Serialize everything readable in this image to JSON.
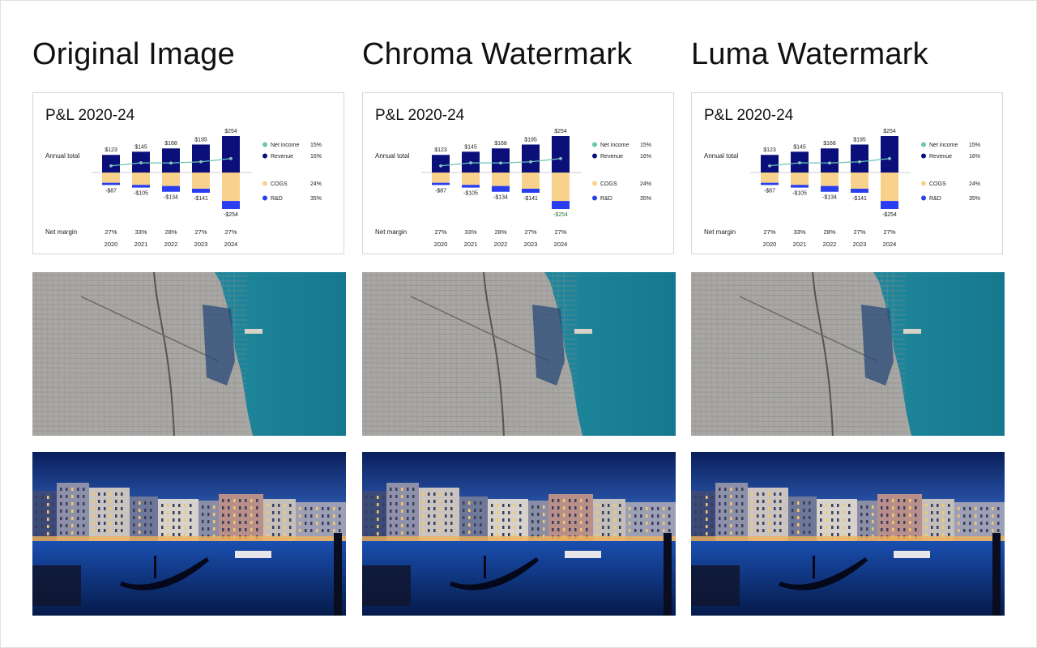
{
  "columns": [
    {
      "title": "Original Image",
      "variant": "original"
    },
    {
      "title": "Chroma Watermark",
      "variant": "chroma"
    },
    {
      "title": "Luma Watermark",
      "variant": "luma"
    }
  ],
  "colors": {
    "revenue": "#0b0f7a",
    "cogs": "#f8d28c",
    "rnd": "#2a3df0",
    "net_income": "#6cc4b4",
    "text": "#222222",
    "muted": "#444444",
    "card_border": "#d6d6d6",
    "city_land": "#a9a7a3",
    "city_water": "#1d8fa3",
    "venice_sky": "#0e2a6e",
    "venice_water": "#0d3a8a"
  },
  "chart_data": {
    "type": "bar",
    "title": "P&L 2020-24",
    "categories": [
      "2020",
      "2021",
      "2022",
      "2023",
      "2024"
    ],
    "row_labels": {
      "annual_total": "Annual total",
      "net_margin": "Net margin"
    },
    "series": [
      {
        "name": "Revenue",
        "values": [
          123,
          145,
          168,
          195,
          254
        ]
      },
      {
        "name": "COGS",
        "values": [
          -87,
          -105,
          -134,
          -141,
          -254
        ]
      },
      {
        "name": "R&D",
        "values": [
          -87,
          -105,
          -134,
          -141,
          -254
        ]
      },
      {
        "name": "Net income",
        "values": [
          33,
          48,
          47,
          53,
          69
        ]
      }
    ],
    "revenue_labels": [
      "$123",
      "$145",
      "$168",
      "$195",
      "$254"
    ],
    "cost_labels": [
      "-$87",
      "-$105",
      "-$134",
      "-$141",
      "-$254"
    ],
    "net_margin_labels": [
      "27%",
      "33%",
      "28%",
      "27%",
      "27%"
    ],
    "legend": [
      {
        "name": "Net income",
        "value": "15%",
        "shape": "circle",
        "color": "#6cc4b4"
      },
      {
        "name": "Revenue",
        "value": "16%",
        "shape": "circle",
        "color": "#0b0f7a"
      },
      {
        "name": "COGS",
        "value": "24%",
        "shape": "circle",
        "color": "#f8d28c"
      },
      {
        "name": "R&D",
        "value": "35%",
        "shape": "circle",
        "color": "#2a3df0"
      }
    ],
    "cogs_share": [
      0.82,
      0.82,
      0.7,
      0.8,
      0.78
    ],
    "ylim": [
      -260,
      260
    ],
    "legend_position": "right",
    "grid": false
  },
  "photos": [
    {
      "row": "city",
      "name": "aerial-city-photo"
    },
    {
      "row": "venice",
      "name": "venice-night-photo"
    }
  ]
}
